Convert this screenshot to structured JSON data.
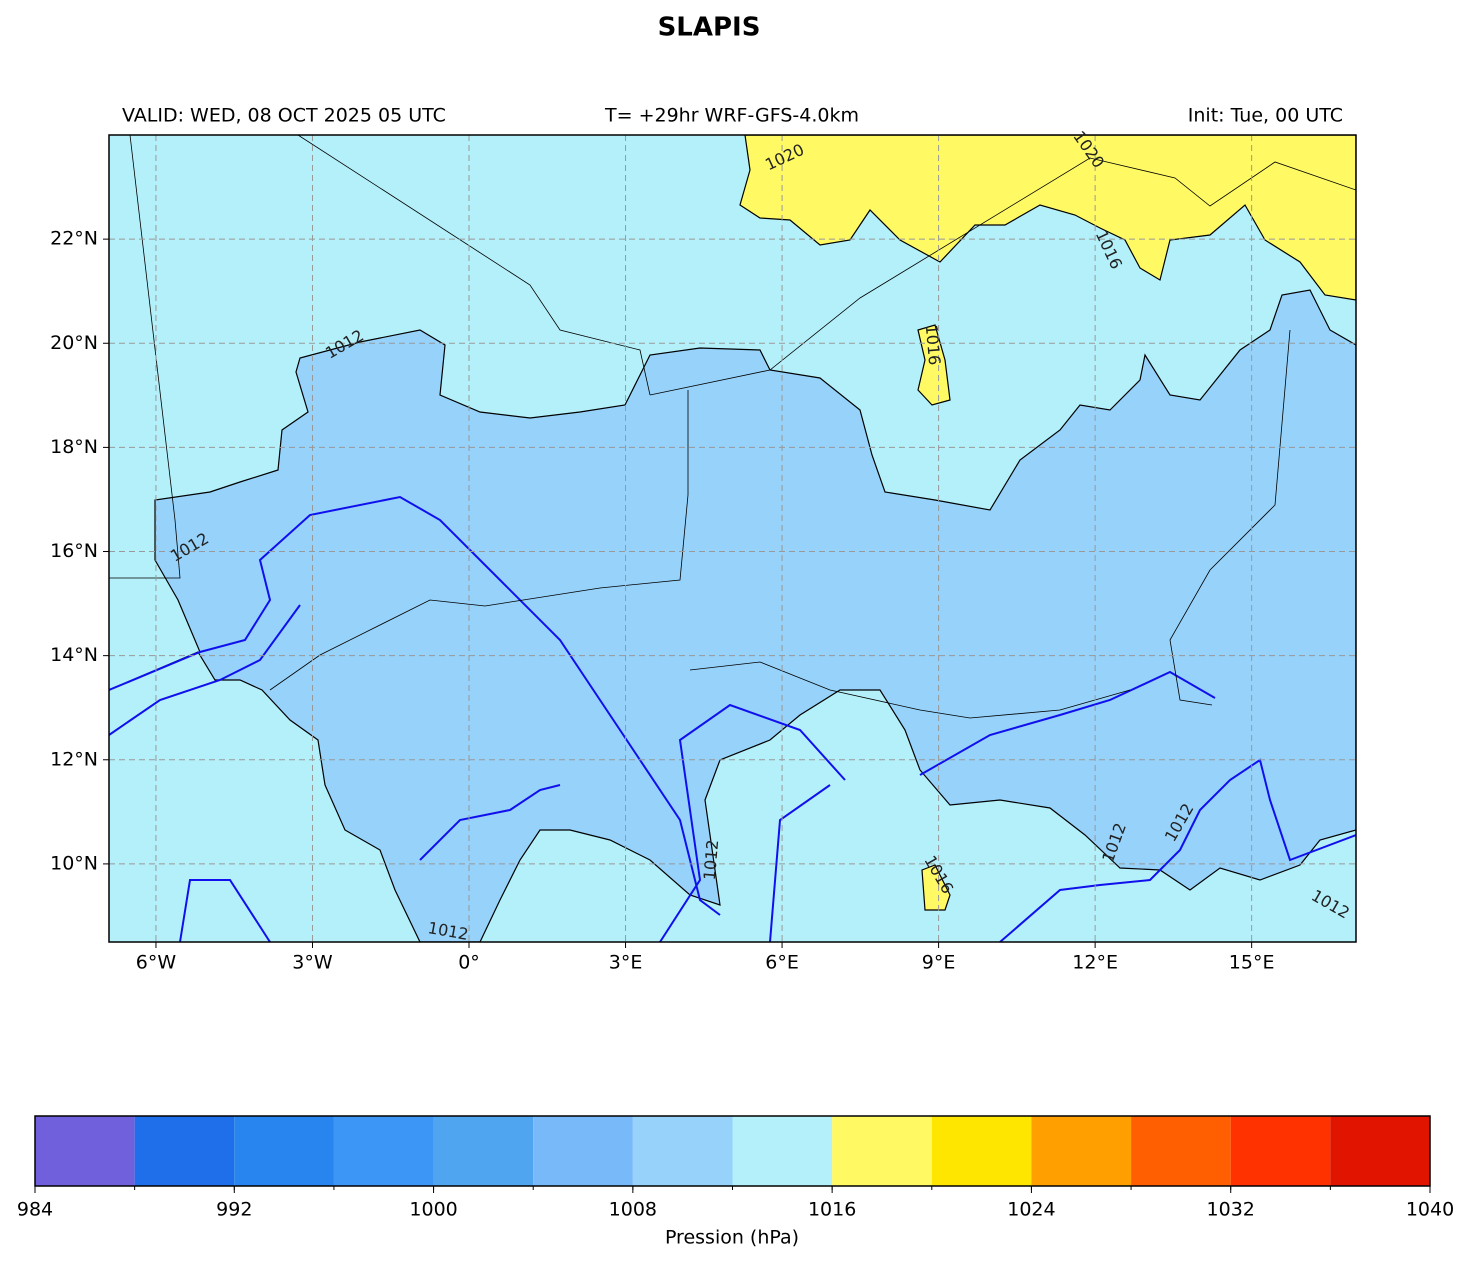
{
  "map": {
    "title": "SLAPIS",
    "valid": "VALID: WED, 08 OCT 2025 05 UTC",
    "forecast": "T= +29hr WRF-GFS-4.0km",
    "init": "Init: Tue, 00 UTC",
    "lon_range": [
      -6.9,
      17.0
    ],
    "lat_range": [
      8.5,
      24.0
    ],
    "lon_ticks": [
      {
        "value": -6,
        "label": "6°W"
      },
      {
        "value": -3,
        "label": "3°W"
      },
      {
        "value": 0,
        "label": "0°"
      },
      {
        "value": 3,
        "label": "3°E"
      },
      {
        "value": 6,
        "label": "6°E"
      },
      {
        "value": 9,
        "label": "9°E"
      },
      {
        "value": 12,
        "label": "12°E"
      },
      {
        "value": 15,
        "label": "15°E"
      }
    ],
    "lat_ticks": [
      {
        "value": 10,
        "label": "10°N"
      },
      {
        "value": 12,
        "label": "12°N"
      },
      {
        "value": 14,
        "label": "14°N"
      },
      {
        "value": 16,
        "label": "16°N"
      },
      {
        "value": 18,
        "label": "18°N"
      },
      {
        "value": 20,
        "label": "20°N"
      },
      {
        "value": 22,
        "label": "22°N"
      }
    ],
    "contour_labels": [
      "1020",
      "1020",
      "1016",
      "1016",
      "1016",
      "1012",
      "1012",
      "1012",
      "1012",
      "1012",
      "1012",
      "1012"
    ],
    "colorbar": {
      "levels": [
        984,
        988,
        992,
        996,
        1000,
        1004,
        1008,
        1012,
        1016,
        1020,
        1024,
        1028,
        1032,
        1036,
        1040
      ],
      "colors": [
        "#7160dc",
        "#1f6feb",
        "#2884ef",
        "#3c96f5",
        "#50a5f0",
        "#78b9fa",
        "#96d2fa",
        "#b4f0fa",
        "#fffa64",
        "#ffe600",
        "#ffa000",
        "#ff5f00",
        "#ff3200",
        "#e11400"
      ],
      "ticks": [
        984,
        992,
        1000,
        1008,
        1016,
        1024,
        1032,
        1040
      ],
      "label": "Pression (hPa)"
    }
  }
}
